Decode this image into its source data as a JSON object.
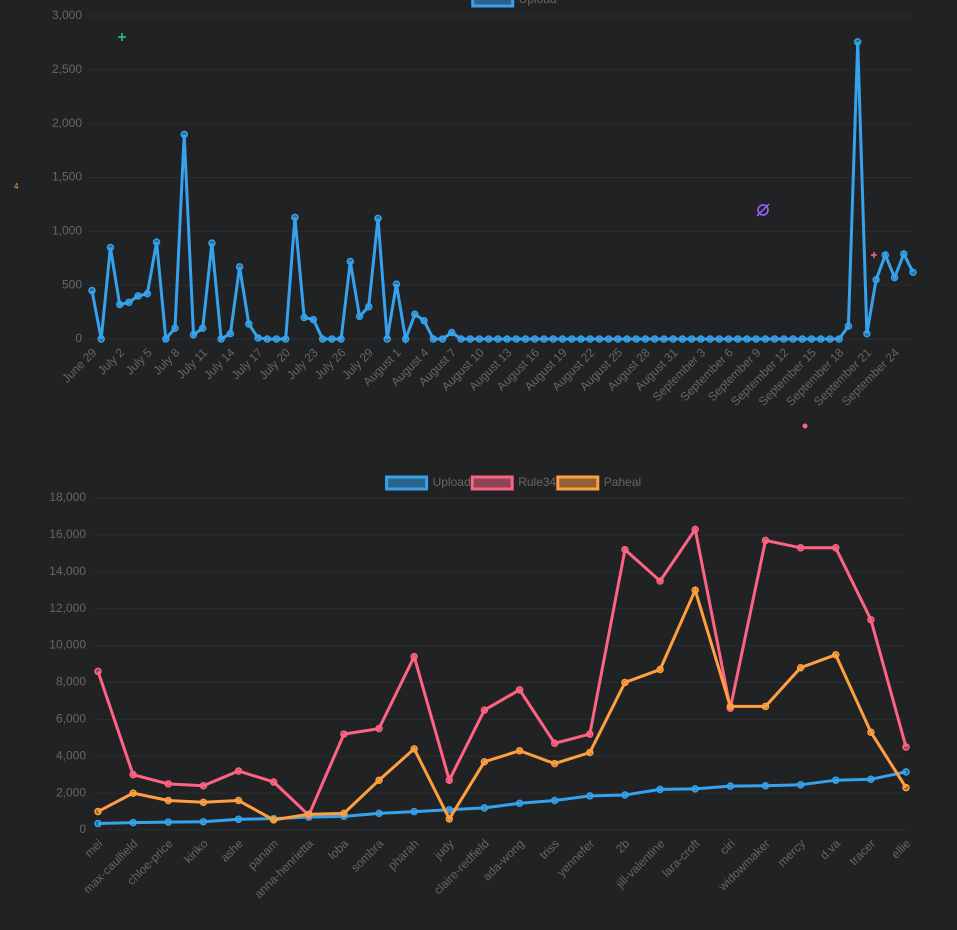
{
  "annotation": "4",
  "chart_data": [
    {
      "type": "line",
      "categories": [
        "June 29",
        null,
        null,
        "July 2",
        null,
        null,
        "July 5",
        null,
        null,
        "July 8",
        null,
        null,
        "July 11",
        null,
        null,
        "July 14",
        null,
        null,
        "July 17",
        null,
        null,
        "July 20",
        null,
        null,
        "July 23",
        null,
        null,
        "July 26",
        null,
        null,
        "July 29",
        null,
        null,
        "August 1",
        null,
        null,
        "August 4",
        null,
        null,
        "August 7",
        null,
        null,
        "August 10",
        null,
        null,
        "August 13",
        null,
        null,
        "August 16",
        null,
        null,
        "August 19",
        null,
        null,
        "August 22",
        null,
        null,
        "August 25",
        null,
        null,
        "August 28",
        null,
        null,
        "August 31",
        null,
        null,
        "September 3",
        null,
        null,
        "September 6",
        null,
        null,
        "September 9",
        null,
        null,
        "September 12",
        null,
        null,
        "September 15",
        null,
        null,
        "September 18",
        null,
        null,
        "September 21",
        null,
        null,
        "September 24",
        null,
        null
      ],
      "series": [
        {
          "name": "Upload",
          "color": "#36a2eb",
          "values": [
            450,
            0,
            850,
            320,
            340,
            400,
            420,
            900,
            0,
            100,
            1900,
            40,
            100,
            890,
            0,
            50,
            670,
            140,
            10,
            0,
            0,
            0,
            1130,
            200,
            180,
            0,
            0,
            0,
            720,
            210,
            300,
            1120,
            0,
            510,
            0,
            230,
            170,
            0,
            0,
            60,
            0,
            0,
            0,
            0,
            0,
            0,
            0,
            0,
            0,
            0,
            0,
            0,
            0,
            0,
            0,
            0,
            0,
            0,
            0,
            0,
            0,
            0,
            0,
            0,
            0,
            0,
            0,
            0,
            0,
            0,
            0,
            0,
            0,
            0,
            0,
            0,
            0,
            0,
            0,
            0,
            0,
            0,
            120,
            2760,
            50,
            550,
            780,
            570,
            790,
            620
          ]
        }
      ],
      "ylim": [
        0,
        3000
      ],
      "yticks": [
        0,
        500,
        {
          "value": 1000,
          "label": "1,000"
        },
        {
          "value": 1500,
          "label": "1,500"
        },
        {
          "value": 2000,
          "label": "2,000"
        },
        {
          "value": 2500,
          "label": "2,500"
        },
        {
          "value": 3000,
          "label": "3,000"
        }
      ],
      "grid": true,
      "legend": "top"
    },
    {
      "type": "line",
      "categories": [
        "mei",
        "max-caulfield",
        "chloe-price",
        "kiriko",
        "ashe",
        "panam",
        "anna-henrietta",
        "loba",
        "sombra",
        "pharah",
        "judy",
        "claire-redfield",
        "ada-wong",
        "triss",
        "yennefer",
        "2b",
        "jill-valentine",
        "lara-croft",
        "ciri",
        "widowmaker",
        "mercy",
        "d.va",
        "tracer",
        "ellie"
      ],
      "series": [
        {
          "name": "Upload",
          "color": "#36a2eb",
          "values": [
            350,
            400,
            430,
            450,
            580,
            620,
            700,
            740,
            900,
            1000,
            1100,
            1200,
            1450,
            1600,
            1850,
            1900,
            2200,
            2230,
            2380,
            2400,
            2450,
            2700,
            2750,
            3150
          ]
        },
        {
          "name": "Rule34",
          "color": "#ff6384",
          "values": [
            8600,
            3000,
            2500,
            2400,
            3200,
            2600,
            800,
            5200,
            5500,
            9400,
            2700,
            6500,
            7600,
            4700,
            5200,
            15200,
            13500,
            16300,
            6600,
            15700,
            15300,
            15300,
            11400,
            4500
          ]
        },
        {
          "name": "Paheal",
          "color": "#ff9f40",
          "values": [
            1000,
            2000,
            1600,
            1500,
            1600,
            550,
            850,
            900,
            2700,
            4400,
            600,
            3700,
            4300,
            3600,
            4200,
            8000,
            8700,
            13000,
            6700,
            6700,
            8800,
            9500,
            5300,
            2300
          ]
        }
      ],
      "ylim": [
        0,
        18000
      ],
      "yticks": [
        0,
        {
          "value": 2000,
          "label": "2,000"
        },
        {
          "value": 4000,
          "label": "4,000"
        },
        {
          "value": 6000,
          "label": "6,000"
        },
        {
          "value": 8000,
          "label": "8,000"
        },
        {
          "value": 10000,
          "label": "10,000"
        },
        {
          "value": 12000,
          "label": "12,000"
        },
        {
          "value": 14000,
          "label": "14,000"
        },
        {
          "value": 16000,
          "label": "16,000"
        },
        {
          "value": 18000,
          "label": "18,000"
        }
      ],
      "grid": true,
      "legend": "top"
    }
  ]
}
